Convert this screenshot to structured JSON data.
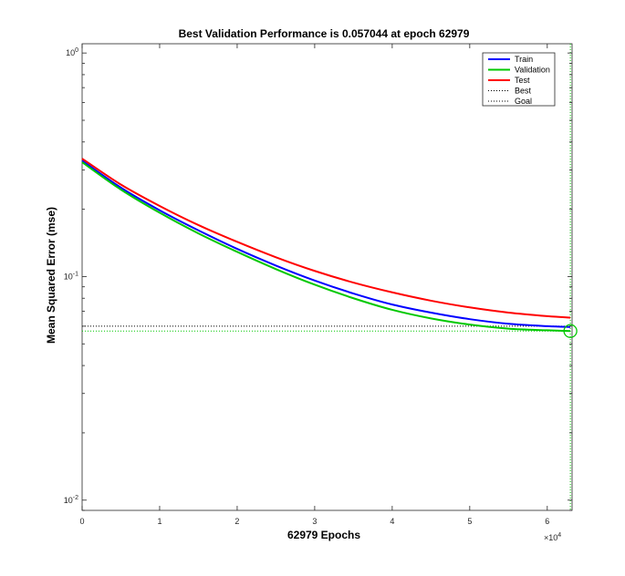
{
  "chart_data": {
    "type": "line",
    "title": "Best Validation Performance is 0.057044 at epoch 62979",
    "xlabel": "62979 Epochs",
    "ylabel": "Mean Squared Error  (mse)",
    "x_exponent_label": "×10",
    "x_exponent_power": "4",
    "x_scale_factor": 10000,
    "xlim": [
      0,
      63200
    ],
    "ylim": [
      0.009,
      1.1
    ],
    "yscale": "log",
    "x_ticks": [
      0,
      10000,
      20000,
      30000,
      40000,
      50000,
      60000
    ],
    "x_tick_labels": [
      "0",
      "1",
      "2",
      "3",
      "4",
      "5",
      "6"
    ],
    "y_ticks": [
      0.01,
      0.1,
      1
    ],
    "y_tick_labels": [
      {
        "base": "10",
        "exp": "-2"
      },
      {
        "base": "10",
        "exp": "-1"
      },
      {
        "base": "10",
        "exp": "0"
      }
    ],
    "grid": false,
    "legend_position": "top-right",
    "x": [
      0,
      5000,
      10000,
      15000,
      20000,
      25000,
      30000,
      35000,
      40000,
      45000,
      50000,
      55000,
      60000,
      62979
    ],
    "series": [
      {
        "name": "Train",
        "color": "#0000ff",
        "style": "solid",
        "values": [
          0.33,
          0.25,
          0.198,
          0.161,
          0.133,
          0.112,
          0.096,
          0.084,
          0.075,
          0.069,
          0.0645,
          0.0615,
          0.06,
          0.0595
        ]
      },
      {
        "name": "Validation",
        "color": "#00c800",
        "style": "solid",
        "values": [
          0.325,
          0.245,
          0.193,
          0.156,
          0.129,
          0.108,
          0.092,
          0.08,
          0.071,
          0.065,
          0.061,
          0.0585,
          0.0575,
          0.057044
        ]
      },
      {
        "name": "Test",
        "color": "#ff0000",
        "style": "solid",
        "values": [
          0.337,
          0.258,
          0.207,
          0.17,
          0.143,
          0.122,
          0.106,
          0.094,
          0.085,
          0.078,
          0.0728,
          0.069,
          0.0665,
          0.0655
        ]
      }
    ],
    "best": {
      "label": "Best",
      "epoch": 62979,
      "value": 0.057044,
      "color": "#00c800"
    },
    "goal": {
      "label": "Goal",
      "value": 0.06,
      "color": "#000000"
    },
    "legend": [
      {
        "label": "Train",
        "color": "#0000ff",
        "style": "solid"
      },
      {
        "label": "Validation",
        "color": "#00c800",
        "style": "solid"
      },
      {
        "label": "Test",
        "color": "#ff0000",
        "style": "solid"
      },
      {
        "label": "Best",
        "color": "#000000",
        "style": "dotted"
      },
      {
        "label": "Goal",
        "color": "#000000",
        "style": "dotted"
      }
    ]
  }
}
